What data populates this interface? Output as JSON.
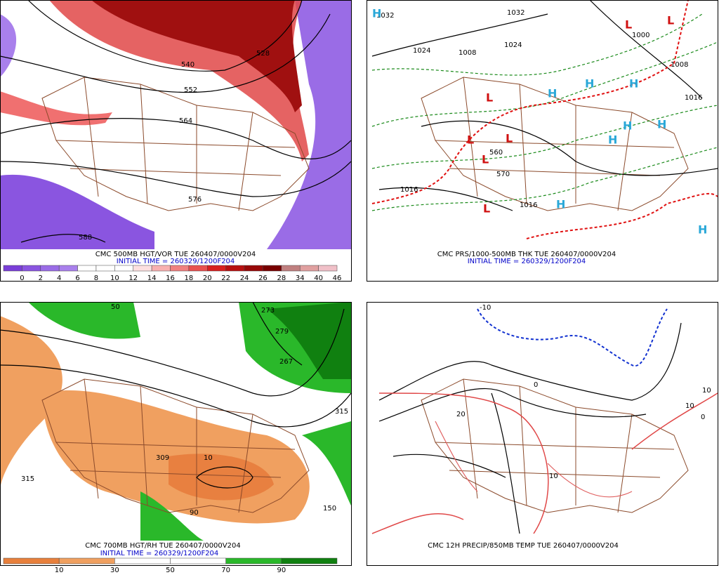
{
  "panels": [
    {
      "title": "CMC 500MB HGT/VOR TUE 260407/0000V204",
      "initial_time": "INITIAL TIME = 260329/1200F204",
      "colorbar_labels": [
        0,
        2,
        4,
        6,
        8,
        10,
        12,
        14,
        16,
        18,
        20,
        22,
        24,
        26,
        28,
        34,
        40,
        46
      ],
      "contour_labels": [
        "528",
        "540",
        "552",
        "564",
        "576",
        "588"
      ]
    },
    {
      "title": "CMC PRS/1000-500MB THK TUE 260407/0000V204",
      "initial_time": "INITIAL TIME = 260329/1200F204",
      "contour_labels": [
        "1032",
        "1032",
        "1024",
        "1008",
        "1024",
        "1000",
        "1008",
        "1016",
        "1016",
        "1016",
        "560",
        "570"
      ],
      "highs": [
        "H",
        "H",
        "H",
        "H",
        "H",
        "H",
        "H",
        "H",
        "H"
      ],
      "lows": [
        "L",
        "L",
        "L",
        "L",
        "L",
        "L",
        "L"
      ]
    },
    {
      "title": "CMC 700MB HGT/RH TUE 260407/0000V204",
      "initial_time": "INITIAL TIME = 260329/1200F204",
      "colorbar_labels": [
        10,
        30,
        50,
        70,
        90
      ],
      "contour_labels": [
        "273",
        "279",
        "267",
        "315",
        "309",
        "315",
        "50",
        "90",
        "150",
        "10"
      ]
    },
    {
      "title": "CMC 12H PRECIP/850MB TEMP TUE 260407/0000V204",
      "contour_labels": [
        "-10",
        "10",
        "0",
        "20",
        "10",
        "10",
        "0"
      ]
    }
  ]
}
